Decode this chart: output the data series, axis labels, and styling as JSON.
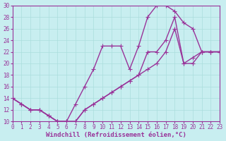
{
  "xlabel": "Windchill (Refroidissement éolien,°C)",
  "bg_color": "#c8eef0",
  "line_color": "#993399",
  "grid_color": "#aadddd",
  "xlim": [
    0,
    23
  ],
  "ylim": [
    10,
    30
  ],
  "xticks": [
    0,
    1,
    2,
    3,
    4,
    5,
    6,
    7,
    8,
    9,
    10,
    11,
    12,
    13,
    14,
    15,
    16,
    17,
    18,
    19,
    20,
    21,
    22,
    23
  ],
  "yticks": [
    10,
    12,
    14,
    16,
    18,
    20,
    22,
    24,
    26,
    28,
    30
  ],
  "line1_x": [
    0,
    1,
    2,
    3,
    4,
    5,
    6,
    7,
    8,
    9,
    10,
    11,
    12,
    13,
    14,
    15,
    16,
    17,
    18,
    19,
    20,
    21,
    22,
    23
  ],
  "line1_y": [
    14,
    13,
    12,
    12,
    11,
    10,
    10,
    13,
    16,
    19,
    23,
    23,
    23,
    19,
    23,
    28,
    30,
    30,
    29,
    27,
    26,
    22,
    22,
    22
  ],
  "line2_x": [
    0,
    1,
    2,
    3,
    4,
    5,
    6,
    7,
    8,
    9,
    10,
    11,
    12,
    13,
    14,
    15,
    16,
    17,
    18,
    19,
    20,
    21,
    22,
    23
  ],
  "line2_y": [
    14,
    13,
    12,
    12,
    11,
    10,
    10,
    10,
    12,
    13,
    14,
    15,
    16,
    17,
    18,
    19,
    20,
    22,
    26,
    20,
    21,
    22,
    22,
    22
  ],
  "line3_x": [
    0,
    1,
    2,
    3,
    4,
    5,
    6,
    7,
    8,
    9,
    10,
    11,
    12,
    13,
    14,
    15,
    16,
    17,
    18,
    19,
    20,
    21,
    22,
    23
  ],
  "line3_y": [
    14,
    13,
    12,
    12,
    11,
    10,
    10,
    10,
    12,
    13,
    14,
    15,
    16,
    17,
    18,
    22,
    22,
    24,
    28,
    20,
    20,
    22,
    22,
    22
  ],
  "marker": "+",
  "marker_size": 4,
  "line_width": 1.0,
  "tick_fontsize": 5.5,
  "label_fontsize": 6.5
}
